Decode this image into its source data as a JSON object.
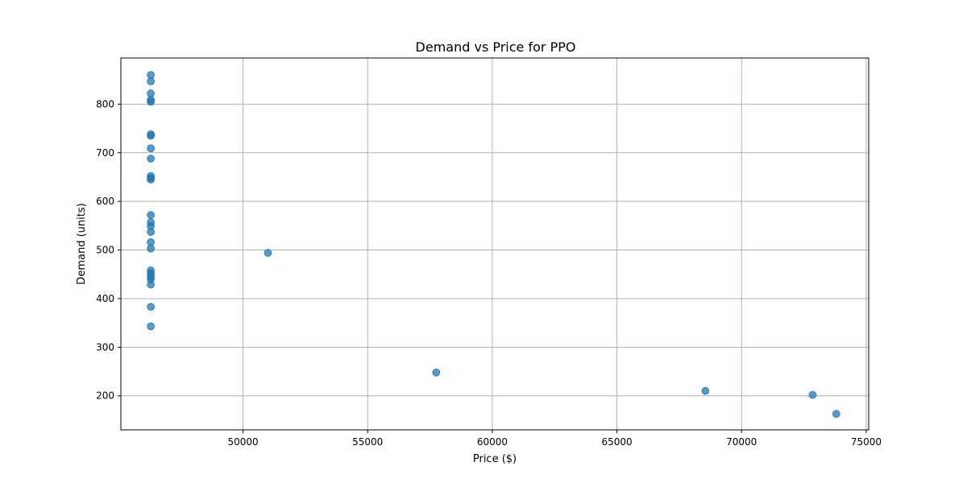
{
  "chart_data": {
    "type": "scatter",
    "title": "Demand vs Price for PPO",
    "xlabel": "Price ($)",
    "ylabel": "Demand (units)",
    "xlim": [
      45100,
      75100
    ],
    "ylim": [
      130,
      895
    ],
    "xticks": [
      50000,
      55000,
      60000,
      65000,
      70000,
      75000
    ],
    "yticks": [
      200,
      300,
      400,
      500,
      600,
      700,
      800
    ],
    "grid": true,
    "marker_color": "#1f77b4",
    "marker_alpha": 0.75,
    "series": [
      {
        "points": [
          [
            46300,
            860
          ],
          [
            46300,
            847
          ],
          [
            46300,
            822
          ],
          [
            46300,
            809
          ],
          [
            46300,
            805
          ],
          [
            46300,
            738
          ],
          [
            46300,
            735
          ],
          [
            46300,
            709
          ],
          [
            46300,
            688
          ],
          [
            46300,
            652
          ],
          [
            46300,
            648
          ],
          [
            46300,
            645
          ],
          [
            46300,
            572
          ],
          [
            46300,
            557
          ],
          [
            46300,
            549
          ],
          [
            46300,
            537
          ],
          [
            46300,
            516
          ],
          [
            46300,
            503
          ],
          [
            46300,
            458
          ],
          [
            46300,
            452
          ],
          [
            46300,
            445
          ],
          [
            46300,
            440
          ],
          [
            46300,
            429
          ],
          [
            46300,
            383
          ],
          [
            46300,
            343
          ],
          [
            51000,
            494
          ],
          [
            57750,
            248
          ],
          [
            68550,
            210
          ],
          [
            72850,
            202
          ],
          [
            73800,
            163
          ]
        ]
      }
    ]
  }
}
